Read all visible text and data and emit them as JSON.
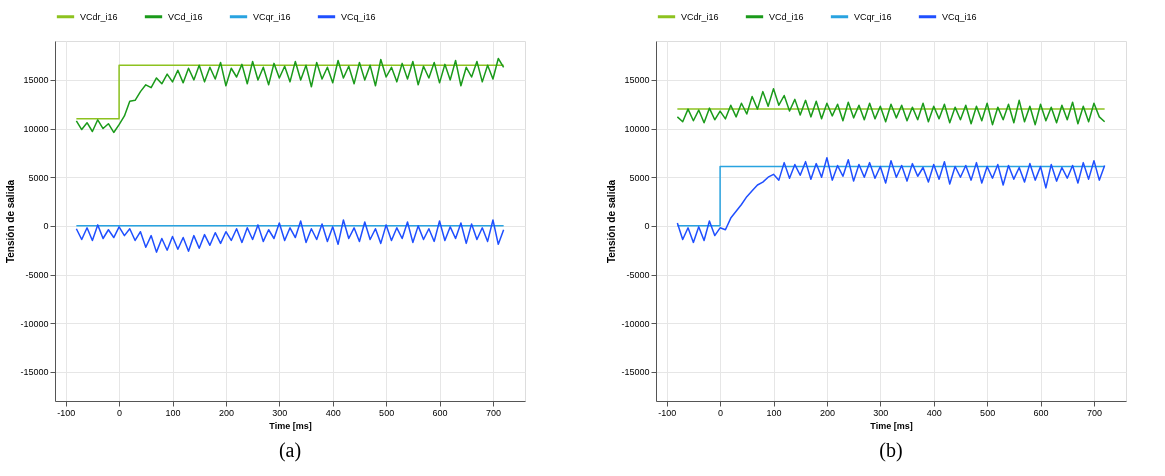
{
  "chart_data": [
    {
      "type": "line",
      "xlabel": "Time [ms]",
      "ylabel": "Tensión de salida",
      "annotations": [
        "(a)"
      ],
      "x": [
        -80,
        -70,
        -60,
        -50,
        -40,
        -30,
        -20,
        -10,
        0,
        10,
        20,
        30,
        40,
        50,
        60,
        70,
        80,
        90,
        100,
        110,
        120,
        130,
        140,
        150,
        160,
        170,
        180,
        190,
        200,
        210,
        220,
        230,
        240,
        250,
        260,
        270,
        280,
        290,
        300,
        310,
        320,
        330,
        340,
        350,
        360,
        370,
        380,
        390,
        400,
        410,
        420,
        430,
        440,
        450,
        460,
        470,
        480,
        490,
        500,
        510,
        520,
        530,
        540,
        550,
        560,
        570,
        580,
        590,
        600,
        610,
        620,
        630,
        640,
        650,
        660,
        670,
        680,
        690,
        700,
        710,
        720
      ],
      "xlim": [
        -120,
        760
      ],
      "xticks": [
        -100,
        0,
        100,
        200,
        300,
        400,
        500,
        600,
        700
      ],
      "ylim": [
        -18000,
        19000
      ],
      "yticks": [
        -15000,
        -10000,
        -5000,
        0,
        5000,
        10000,
        15000
      ],
      "grid": true,
      "legend": "top",
      "line_style": "solid",
      "series": [
        {
          "name": "VCdr_i16",
          "color": "#8dc21f",
          "x": [
            -80,
            0,
            0,
            720
          ],
          "values": [
            11000,
            11000,
            16500,
            16500
          ]
        },
        {
          "name": "VCd_i16",
          "color": "#1a9a1a",
          "values": [
            10800,
            9900,
            10600,
            9700,
            10900,
            10000,
            10500,
            9600,
            10400,
            11300,
            12800,
            12900,
            13800,
            14500,
            14200,
            15200,
            14600,
            15600,
            14800,
            16000,
            14700,
            16200,
            15000,
            16500,
            14800,
            16300,
            15100,
            16800,
            14400,
            16200,
            15300,
            16600,
            14600,
            16900,
            15000,
            16300,
            14500,
            16700,
            15200,
            16400,
            14800,
            16900,
            15000,
            16500,
            14300,
            16800,
            15100,
            16300,
            14700,
            17000,
            15200,
            16400,
            14600,
            16800,
            15000,
            16500,
            14400,
            17100,
            15300,
            16300,
            14800,
            16700,
            15100,
            16900,
            14500,
            16400,
            15200,
            16800,
            14700,
            16600,
            15000,
            17000,
            14400,
            16300,
            15300,
            16900,
            14800,
            16500,
            15100,
            17200,
            16300
          ]
        },
        {
          "name": "VCqr_i16",
          "color": "#29a3e0",
          "x": [
            -80,
            720
          ],
          "values": [
            0,
            0
          ]
        },
        {
          "name": "VCq_i16",
          "color": "#1f4fff",
          "values": [
            -300,
            -1400,
            -200,
            -1500,
            100,
            -1300,
            -400,
            -1200,
            -100,
            -1000,
            -300,
            -1500,
            -600,
            -2200,
            -1000,
            -2700,
            -1300,
            -2500,
            -1100,
            -2400,
            -1200,
            -2600,
            -1000,
            -2300,
            -900,
            -2000,
            -700,
            -1800,
            -600,
            -1500,
            -300,
            -1700,
            -200,
            -1400,
            100,
            -1600,
            -400,
            -1300,
            300,
            -1500,
            -200,
            -1200,
            500,
            -1700,
            -300,
            -1400,
            200,
            -1600,
            -100,
            -1900,
            600,
            -1300,
            -200,
            -1600,
            400,
            -1400,
            -300,
            -1800,
            100,
            -1500,
            -200,
            -1300,
            400,
            -1700,
            0,
            -1400,
            -300,
            -1600,
            500,
            -1500,
            -100,
            -1300,
            300,
            -1800,
            200,
            -1400,
            -200,
            -1600,
            600,
            -1900,
            -400
          ]
        }
      ]
    },
    {
      "type": "line",
      "xlabel": "Time [ms]",
      "ylabel": "Tensión de salida",
      "annotations": [
        "(b)"
      ],
      "x": [
        -80,
        -70,
        -60,
        -50,
        -40,
        -30,
        -20,
        -10,
        0,
        10,
        20,
        30,
        40,
        50,
        60,
        70,
        80,
        90,
        100,
        110,
        120,
        130,
        140,
        150,
        160,
        170,
        180,
        190,
        200,
        210,
        220,
        230,
        240,
        250,
        260,
        270,
        280,
        290,
        300,
        310,
        320,
        330,
        340,
        350,
        360,
        370,
        380,
        390,
        400,
        410,
        420,
        430,
        440,
        450,
        460,
        470,
        480,
        490,
        500,
        510,
        520,
        530,
        540,
        550,
        560,
        570,
        580,
        590,
        600,
        610,
        620,
        630,
        640,
        650,
        660,
        670,
        680,
        690,
        700,
        710,
        720
      ],
      "xlim": [
        -120,
        760
      ],
      "xticks": [
        -100,
        0,
        100,
        200,
        300,
        400,
        500,
        600,
        700
      ],
      "ylim": [
        -18000,
        19000
      ],
      "yticks": [
        -15000,
        -10000,
        -5000,
        0,
        5000,
        10000,
        15000
      ],
      "grid": true,
      "legend": "top",
      "line_style": "solid",
      "series": [
        {
          "name": "VCdr_i16",
          "color": "#8dc21f",
          "x": [
            -80,
            720
          ],
          "values": [
            12000,
            12000
          ]
        },
        {
          "name": "VCd_i16",
          "color": "#1a9a1a",
          "values": [
            11200,
            10700,
            12000,
            10800,
            11900,
            10600,
            12100,
            10900,
            11800,
            11000,
            12400,
            11200,
            12600,
            11500,
            13300,
            12000,
            13800,
            12300,
            14100,
            12400,
            13400,
            11800,
            13000,
            11400,
            12900,
            11200,
            12800,
            11000,
            12600,
            11300,
            12500,
            10800,
            12700,
            11100,
            12400,
            10900,
            12600,
            11000,
            12300,
            10700,
            12500,
            11100,
            12400,
            10800,
            12200,
            10900,
            12600,
            10700,
            12300,
            11000,
            12500,
            10600,
            12200,
            10900,
            12400,
            10500,
            12300,
            10800,
            12600,
            10400,
            12200,
            10900,
            12500,
            10600,
            12900,
            10700,
            12300,
            10400,
            12500,
            10800,
            12200,
            10600,
            12400,
            10900,
            12700,
            10500,
            12300,
            10700,
            12600,
            11200,
            10700
          ]
        },
        {
          "name": "VCqr_i16",
          "color": "#29a3e0",
          "x": [
            -80,
            0,
            0,
            720
          ],
          "values": [
            0,
            0,
            6100,
            6100
          ]
        },
        {
          "name": "VCq_i16",
          "color": "#1f4fff",
          "values": [
            300,
            -1400,
            -200,
            -1700,
            -100,
            -1500,
            500,
            -1000,
            -200,
            -400,
            800,
            1500,
            2200,
            3000,
            3600,
            4200,
            4500,
            5000,
            5300,
            4700,
            6500,
            4900,
            6300,
            5200,
            6600,
            4800,
            6400,
            5000,
            7000,
            4700,
            6200,
            5100,
            6800,
            4600,
            6300,
            5000,
            6500,
            4900,
            6100,
            4400,
            6700,
            5000,
            6200,
            4600,
            6400,
            5100,
            6000,
            4500,
            6300,
            4800,
            6600,
            4300,
            6100,
            5000,
            6200,
            4700,
            6500,
            4400,
            6100,
            4900,
            6300,
            4200,
            6200,
            4800,
            6000,
            4500,
            6400,
            4700,
            6100,
            3900,
            6300,
            4600,
            6000,
            4900,
            6200,
            4400,
            6500,
            4800,
            6700,
            4700,
            6200
          ]
        }
      ]
    }
  ]
}
